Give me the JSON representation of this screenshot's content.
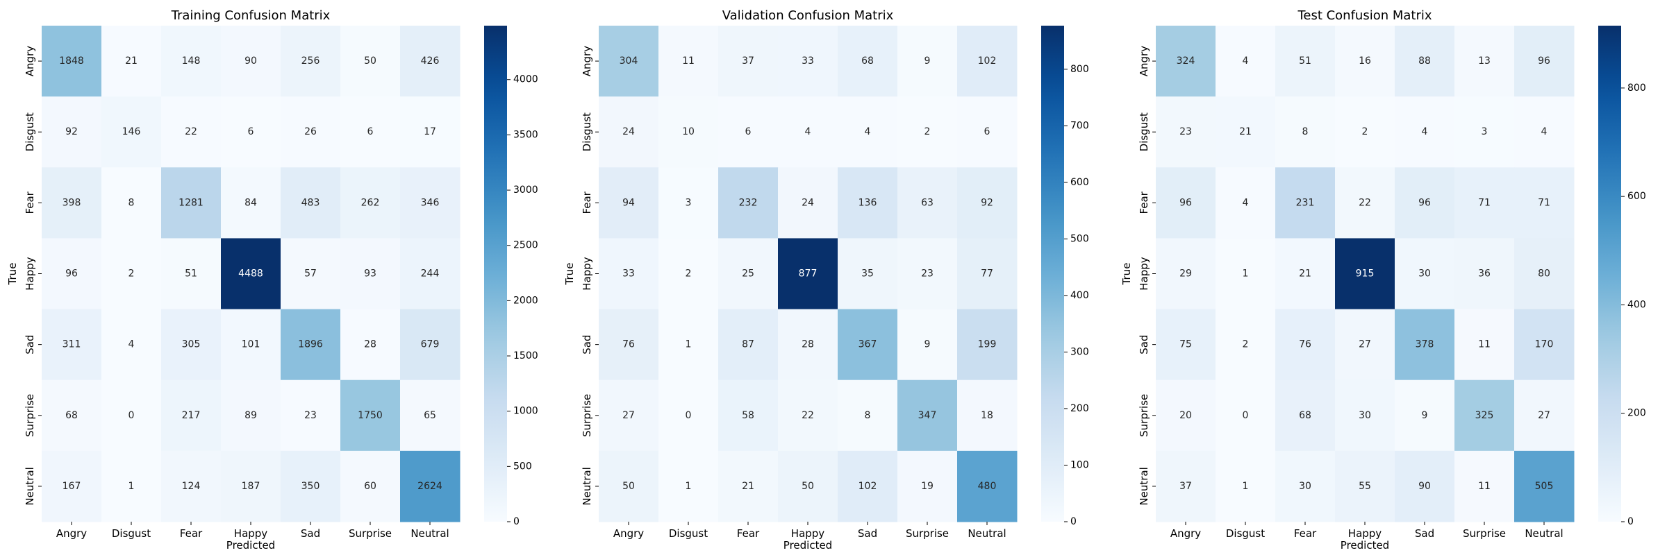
{
  "chart_data": [
    {
      "type": "heatmap",
      "title": "Training Confusion Matrix",
      "xlabel": "Predicted",
      "ylabel": "True",
      "x_categories": [
        "Angry",
        "Disgust",
        "Fear",
        "Happy",
        "Sad",
        "Surprise",
        "Neutral"
      ],
      "y_categories": [
        "Angry",
        "Disgust",
        "Fear",
        "Happy",
        "Sad",
        "Surprise",
        "Neutral"
      ],
      "values": [
        [
          1848,
          21,
          148,
          90,
          256,
          50,
          426
        ],
        [
          92,
          146,
          22,
          6,
          26,
          6,
          17
        ],
        [
          398,
          8,
          1281,
          84,
          483,
          262,
          346
        ],
        [
          96,
          2,
          51,
          4488,
          57,
          93,
          244
        ],
        [
          311,
          4,
          305,
          101,
          1896,
          28,
          679
        ],
        [
          68,
          0,
          217,
          89,
          23,
          1750,
          65
        ],
        [
          167,
          1,
          124,
          187,
          350,
          60,
          2624
        ]
      ],
      "colorbar": {
        "colormap": "Blues",
        "vmin": 0,
        "vmax": 4488,
        "ticks": [
          0,
          500,
          1000,
          1500,
          2000,
          2500,
          3000,
          3500,
          4000
        ]
      }
    },
    {
      "type": "heatmap",
      "title": "Validation Confusion Matrix",
      "xlabel": "Predicted",
      "ylabel": "True",
      "x_categories": [
        "Angry",
        "Disgust",
        "Fear",
        "Happy",
        "Sad",
        "Surprise",
        "Neutral"
      ],
      "y_categories": [
        "Angry",
        "Disgust",
        "Fear",
        "Happy",
        "Sad",
        "Surprise",
        "Neutral"
      ],
      "values": [
        [
          304,
          11,
          37,
          33,
          68,
          9,
          102
        ],
        [
          24,
          10,
          6,
          4,
          4,
          2,
          6
        ],
        [
          94,
          3,
          232,
          24,
          136,
          63,
          92
        ],
        [
          33,
          2,
          25,
          877,
          35,
          23,
          77
        ],
        [
          76,
          1,
          87,
          28,
          367,
          9,
          199
        ],
        [
          27,
          0,
          58,
          22,
          8,
          347,
          18
        ],
        [
          50,
          1,
          21,
          50,
          102,
          19,
          480
        ]
      ],
      "colorbar": {
        "colormap": "Blues",
        "vmin": 0,
        "vmax": 877,
        "ticks": [
          0,
          100,
          200,
          300,
          400,
          500,
          600,
          700,
          800
        ]
      }
    },
    {
      "type": "heatmap",
      "title": "Test Confusion Matrix",
      "xlabel": "Predicted",
      "ylabel": "True",
      "x_categories": [
        "Angry",
        "Disgust",
        "Fear",
        "Happy",
        "Sad",
        "Surprise",
        "Neutral"
      ],
      "y_categories": [
        "Angry",
        "Disgust",
        "Fear",
        "Happy",
        "Sad",
        "Surprise",
        "Neutral"
      ],
      "values": [
        [
          324,
          4,
          51,
          16,
          88,
          13,
          96
        ],
        [
          23,
          21,
          8,
          2,
          4,
          3,
          4
        ],
        [
          96,
          4,
          231,
          22,
          96,
          71,
          71
        ],
        [
          29,
          1,
          21,
          915,
          30,
          36,
          80
        ],
        [
          75,
          2,
          76,
          27,
          378,
          11,
          170
        ],
        [
          20,
          0,
          68,
          30,
          9,
          325,
          27
        ],
        [
          37,
          1,
          30,
          55,
          90,
          11,
          505
        ]
      ],
      "colorbar": {
        "colormap": "Blues",
        "vmin": 0,
        "vmax": 915,
        "ticks": [
          0,
          200,
          400,
          600,
          800
        ]
      }
    }
  ]
}
